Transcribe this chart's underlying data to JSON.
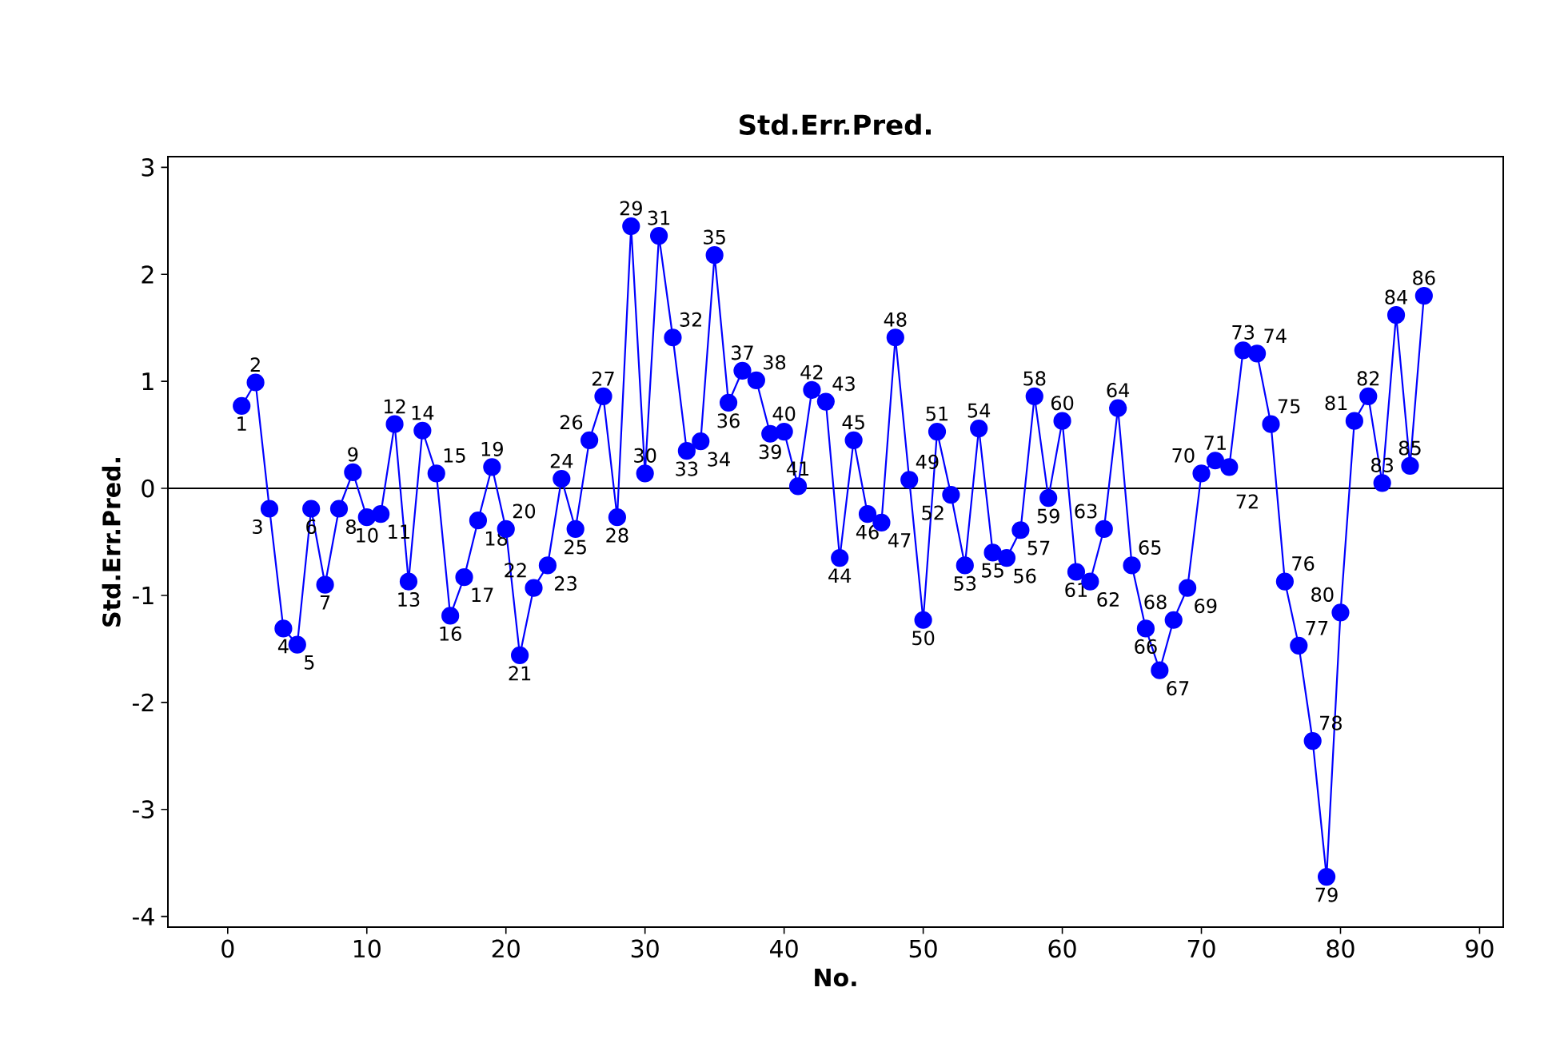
{
  "chart_data": {
    "type": "line",
    "title": "Std.Err.Pred.",
    "xlabel": "No.",
    "ylabel": "Std.Err.Pred.",
    "xlim": [
      -4.3,
      91.7
    ],
    "ylim": [
      -4.1,
      3.1
    ],
    "xticks": [
      0,
      10,
      20,
      30,
      40,
      50,
      60,
      70,
      80,
      90
    ],
    "yticks": [
      -4,
      -3,
      -2,
      -1,
      0,
      1,
      2,
      3
    ],
    "marker": "circle",
    "line_style": "solid",
    "ref_lines": [
      {
        "axis": "y",
        "value": 0,
        "color": "#000000"
      }
    ],
    "series": [
      {
        "color": "#0000ff",
        "x": [
          1,
          2,
          3,
          4,
          5,
          6,
          7,
          8,
          9,
          10,
          11,
          12,
          13,
          14,
          15,
          16,
          17,
          18,
          19,
          20,
          21,
          22,
          23,
          24,
          25,
          26,
          27,
          28,
          29,
          30,
          31,
          32,
          33,
          34,
          35,
          36,
          37,
          38,
          39,
          40,
          41,
          42,
          43,
          44,
          45,
          46,
          47,
          48,
          49,
          50,
          51,
          52,
          53,
          54,
          55,
          56,
          57,
          58,
          59,
          60,
          61,
          62,
          63,
          64,
          65,
          66,
          67,
          68,
          69,
          70,
          71,
          72,
          73,
          74,
          75,
          76,
          77,
          78,
          79,
          80,
          81,
          82,
          83,
          84,
          85,
          86
        ],
        "values": [
          0.77,
          0.99,
          -0.19,
          -1.31,
          -1.46,
          -0.19,
          -0.9,
          -0.19,
          0.15,
          -0.27,
          -0.24,
          0.6,
          -0.87,
          0.54,
          0.14,
          -1.19,
          -0.83,
          -0.3,
          0.2,
          -0.38,
          -1.56,
          -0.93,
          -0.72,
          0.09,
          -0.38,
          0.45,
          0.86,
          -0.27,
          2.45,
          0.14,
          2.36,
          1.41,
          0.35,
          0.44,
          2.18,
          0.8,
          1.1,
          1.01,
          0.51,
          0.53,
          0.02,
          0.92,
          0.81,
          -0.65,
          0.45,
          -0.24,
          -0.32,
          1.41,
          0.08,
          -1.23,
          0.53,
          -0.06,
          -0.72,
          0.56,
          -0.6,
          -0.65,
          -0.39,
          0.86,
          -0.09,
          0.63,
          -0.78,
          -0.87,
          -0.38,
          0.75,
          -0.72,
          -1.31,
          -1.7,
          -1.23,
          -0.93,
          0.14,
          0.26,
          0.2,
          1.29,
          1.26,
          0.6,
          -0.87,
          -1.47,
          -2.36,
          -3.63,
          -1.16,
          0.63,
          0.86,
          0.05,
          1.62,
          0.21,
          1.8
        ]
      }
    ],
    "annotations": [
      {
        "text": "1",
        "x": 1,
        "y": 0.77
      },
      {
        "text": "2",
        "x": 2,
        "y": 0.99
      },
      {
        "text": "3",
        "x": 3,
        "y": -0.19
      },
      {
        "text": "4",
        "x": 4,
        "y": -1.31
      },
      {
        "text": "5",
        "x": 5,
        "y": -1.46
      },
      {
        "text": "6",
        "x": 6,
        "y": -0.19
      },
      {
        "text": "7",
        "x": 7,
        "y": -0.9
      },
      {
        "text": "8",
        "x": 8,
        "y": -0.19
      },
      {
        "text": "9",
        "x": 9,
        "y": 0.15
      },
      {
        "text": "10",
        "x": 10,
        "y": -0.27
      },
      {
        "text": "11",
        "x": 11,
        "y": -0.24
      },
      {
        "text": "12",
        "x": 12,
        "y": 0.6
      },
      {
        "text": "13",
        "x": 13,
        "y": -0.87
      },
      {
        "text": "14",
        "x": 14,
        "y": 0.54
      },
      {
        "text": "15",
        "x": 15,
        "y": 0.14
      },
      {
        "text": "16",
        "x": 16,
        "y": -1.19
      },
      {
        "text": "17",
        "x": 17,
        "y": -0.83
      },
      {
        "text": "18",
        "x": 18,
        "y": -0.3
      },
      {
        "text": "19",
        "x": 19,
        "y": 0.2
      },
      {
        "text": "20",
        "x": 20,
        "y": -0.38
      },
      {
        "text": "21",
        "x": 21,
        "y": -1.56
      },
      {
        "text": "22",
        "x": 22,
        "y": -0.93
      },
      {
        "text": "23",
        "x": 23,
        "y": -0.72
      },
      {
        "text": "24",
        "x": 24,
        "y": 0.09
      },
      {
        "text": "25",
        "x": 25,
        "y": -0.38
      },
      {
        "text": "26",
        "x": 26,
        "y": 0.45
      },
      {
        "text": "27",
        "x": 27,
        "y": 0.86
      },
      {
        "text": "28",
        "x": 28,
        "y": -0.27
      },
      {
        "text": "29",
        "x": 29,
        "y": 2.45
      },
      {
        "text": "30",
        "x": 30,
        "y": 0.14
      },
      {
        "text": "31",
        "x": 31,
        "y": 2.36
      },
      {
        "text": "32",
        "x": 32,
        "y": 1.41
      },
      {
        "text": "33",
        "x": 33,
        "y": 0.35
      },
      {
        "text": "34",
        "x": 34,
        "y": 0.44
      },
      {
        "text": "35",
        "x": 35,
        "y": 2.18
      },
      {
        "text": "36",
        "x": 36,
        "y": 0.8
      },
      {
        "text": "37",
        "x": 37,
        "y": 1.1
      },
      {
        "text": "38",
        "x": 38,
        "y": 1.01
      },
      {
        "text": "39",
        "x": 39,
        "y": 0.51
      },
      {
        "text": "40",
        "x": 40,
        "y": 0.53
      },
      {
        "text": "41",
        "x": 41,
        "y": 0.02
      },
      {
        "text": "42",
        "x": 42,
        "y": 0.92
      },
      {
        "text": "43",
        "x": 43,
        "y": 0.81
      },
      {
        "text": "44",
        "x": 44,
        "y": -0.65
      },
      {
        "text": "45",
        "x": 45,
        "y": 0.45
      },
      {
        "text": "46",
        "x": 46,
        "y": -0.24
      },
      {
        "text": "47",
        "x": 47,
        "y": -0.32
      },
      {
        "text": "48",
        "x": 48,
        "y": 1.41
      },
      {
        "text": "49",
        "x": 49,
        "y": 0.08
      },
      {
        "text": "50",
        "x": 50,
        "y": -1.23
      },
      {
        "text": "51",
        "x": 51,
        "y": 0.53
      },
      {
        "text": "52",
        "x": 52,
        "y": -0.06
      },
      {
        "text": "53",
        "x": 53,
        "y": -0.72
      },
      {
        "text": "54",
        "x": 54,
        "y": 0.56
      },
      {
        "text": "55",
        "x": 55,
        "y": -0.6
      },
      {
        "text": "56",
        "x": 56,
        "y": -0.65
      },
      {
        "text": "57",
        "x": 57,
        "y": -0.39
      },
      {
        "text": "58",
        "x": 58,
        "y": 0.86
      },
      {
        "text": "59",
        "x": 59,
        "y": -0.09
      },
      {
        "text": "60",
        "x": 60,
        "y": 0.63
      },
      {
        "text": "61",
        "x": 61,
        "y": -0.78
      },
      {
        "text": "62",
        "x": 62,
        "y": -0.87
      },
      {
        "text": "63",
        "x": 63,
        "y": -0.38
      },
      {
        "text": "64",
        "x": 64,
        "y": 0.75
      },
      {
        "text": "65",
        "x": 65,
        "y": -0.72
      },
      {
        "text": "66",
        "x": 66,
        "y": -1.31
      },
      {
        "text": "67",
        "x": 67,
        "y": -1.7
      },
      {
        "text": "68",
        "x": 68,
        "y": -1.23
      },
      {
        "text": "69",
        "x": 69,
        "y": -0.93
      },
      {
        "text": "70",
        "x": 70,
        "y": 0.14
      },
      {
        "text": "71",
        "x": 71,
        "y": 0.26
      },
      {
        "text": "72",
        "x": 72,
        "y": 0.2
      },
      {
        "text": "73",
        "x": 73,
        "y": 1.29
      },
      {
        "text": "74",
        "x": 74,
        "y": 1.26
      },
      {
        "text": "75",
        "x": 75,
        "y": 0.6
      },
      {
        "text": "76",
        "x": 76,
        "y": -0.87
      },
      {
        "text": "77",
        "x": 77,
        "y": -1.47
      },
      {
        "text": "78",
        "x": 78,
        "y": -2.36
      },
      {
        "text": "79",
        "x": 79,
        "y": -3.63
      },
      {
        "text": "80",
        "x": 80,
        "y": -1.16
      },
      {
        "text": "81",
        "x": 81,
        "y": 0.63
      },
      {
        "text": "82",
        "x": 82,
        "y": 0.86
      },
      {
        "text": "83",
        "x": 83,
        "y": 0.05
      },
      {
        "text": "84",
        "x": 84,
        "y": 1.62
      },
      {
        "text": "85",
        "x": 85,
        "y": 0.21
      },
      {
        "text": "86",
        "x": 86,
        "y": 1.8
      }
    ]
  }
}
